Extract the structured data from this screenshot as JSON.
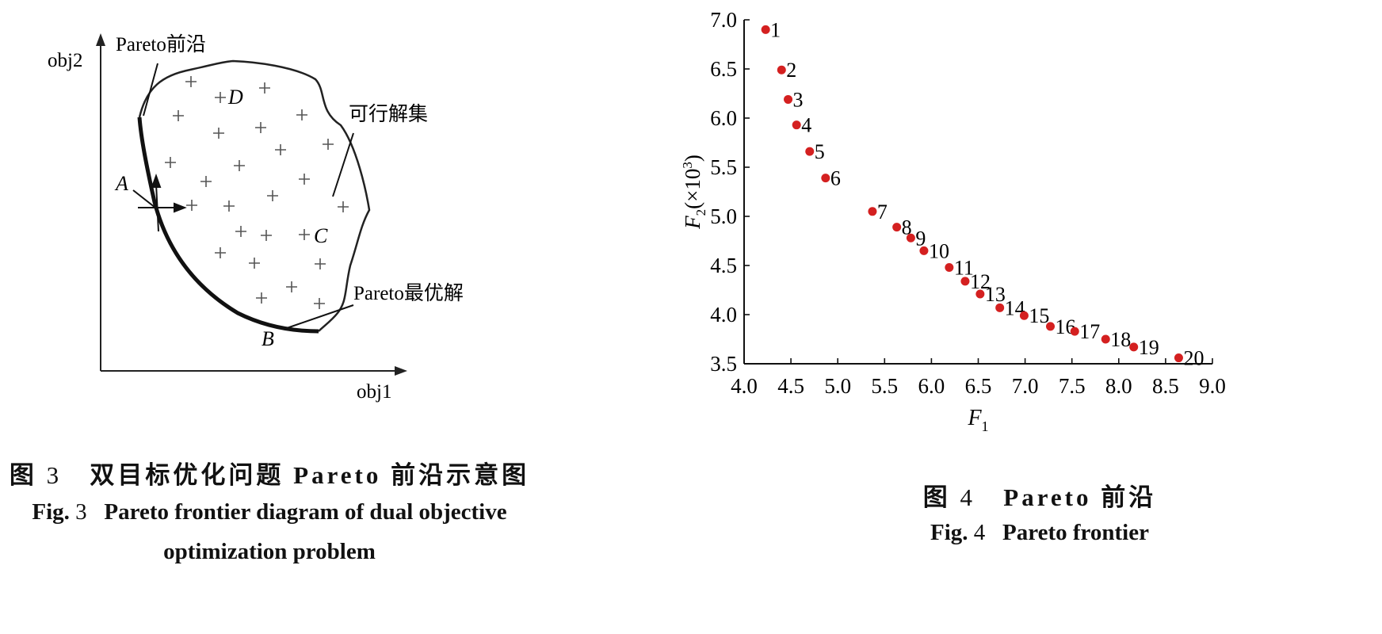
{
  "figure3": {
    "diagram": {
      "y_axis_label": "obj2",
      "x_axis_label": "obj1",
      "pareto_front_label": "Pareto前沿",
      "feasible_set_label": "可行解集",
      "pareto_optimal_label": "Pareto最优解",
      "point_a": "A",
      "point_b": "B",
      "point_c": "C",
      "point_d": "D"
    },
    "caption": {
      "cn_prefix": "图",
      "cn_num": "3",
      "cn_text": "双目标优化问题 Pareto 前沿示意图",
      "en_prefix": "Fig.",
      "en_num": "3",
      "en_text_line1": "Pareto frontier diagram of dual objective",
      "en_text_line2": "optimization problem"
    }
  },
  "figure4": {
    "caption": {
      "cn_prefix": "图",
      "cn_num": "4",
      "cn_text": "Pareto 前沿",
      "en_prefix": "Fig.",
      "en_num": "4",
      "en_text": "Pareto frontier"
    }
  },
  "chart_data": {
    "type": "scatter",
    "title": "",
    "xlabel": "F",
    "xlabel_sub": "1",
    "ylabel": "F",
    "ylabel_sub": "2",
    "ylabel_suffix": "(×10",
    "ylabel_sup": "3",
    "ylabel_close": ")",
    "xlim": [
      4.0,
      9.0
    ],
    "ylim": [
      3.5,
      7.0
    ],
    "xticks": [
      "4.0",
      "4.5",
      "5.0",
      "5.5",
      "6.0",
      "6.5",
      "7.0",
      "7.5",
      "8.0",
      "8.5",
      "9.0"
    ],
    "yticks": [
      "3.5",
      "4.0",
      "4.5",
      "5.0",
      "5.5",
      "6.0",
      "6.5",
      "7.0"
    ],
    "grid": false,
    "marker_color": "#d42020",
    "points": [
      {
        "label": "1",
        "x": 4.23,
        "y": 6.9
      },
      {
        "label": "2",
        "x": 4.4,
        "y": 6.49
      },
      {
        "label": "3",
        "x": 4.47,
        "y": 6.19
      },
      {
        "label": "4",
        "x": 4.56,
        "y": 5.93
      },
      {
        "label": "5",
        "x": 4.7,
        "y": 5.66
      },
      {
        "label": "6",
        "x": 4.87,
        "y": 5.39
      },
      {
        "label": "7",
        "x": 5.37,
        "y": 5.05
      },
      {
        "label": "8",
        "x": 5.63,
        "y": 4.89
      },
      {
        "label": "9",
        "x": 5.78,
        "y": 4.78
      },
      {
        "label": "10",
        "x": 5.92,
        "y": 4.65
      },
      {
        "label": "11",
        "x": 6.19,
        "y": 4.48
      },
      {
        "label": "12",
        "x": 6.36,
        "y": 4.34
      },
      {
        "label": "13",
        "x": 6.52,
        "y": 4.21
      },
      {
        "label": "14",
        "x": 6.73,
        "y": 4.07
      },
      {
        "label": "15",
        "x": 6.99,
        "y": 3.99
      },
      {
        "label": "16",
        "x": 7.27,
        "y": 3.88
      },
      {
        "label": "17",
        "x": 7.53,
        "y": 3.83
      },
      {
        "label": "18",
        "x": 7.86,
        "y": 3.75
      },
      {
        "label": "19",
        "x": 8.16,
        "y": 3.67
      },
      {
        "label": "20",
        "x": 8.64,
        "y": 3.56
      }
    ]
  }
}
